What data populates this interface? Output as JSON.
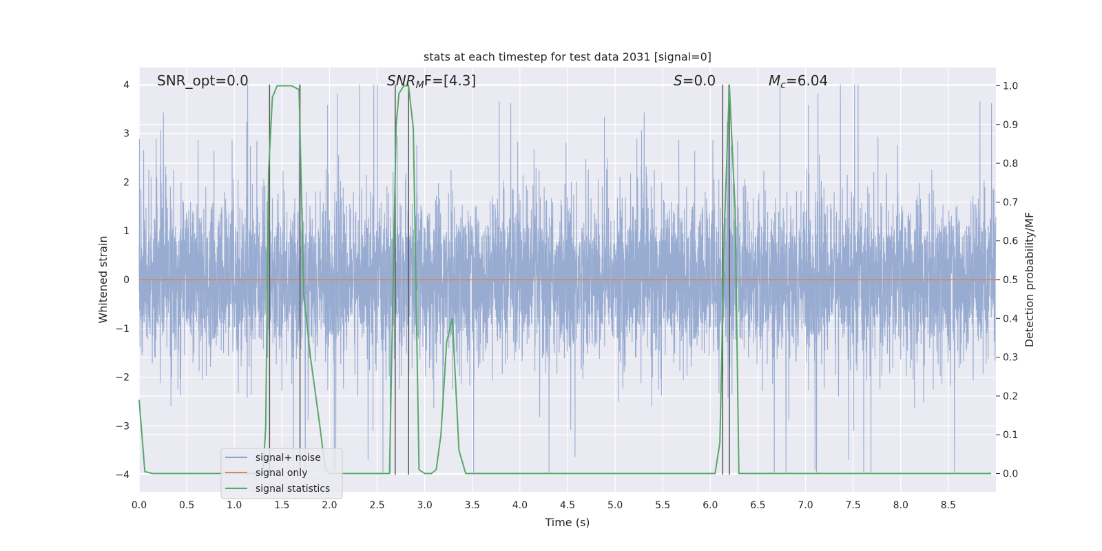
{
  "chart_data": {
    "type": "line",
    "title": "stats at each timestep for test data 2031 [signal=0]",
    "xlabel": "Time (s)",
    "ylabel": "Whitened strain",
    "y2label": "Detection probability/MF",
    "xlim": [
      0,
      9.0
    ],
    "ylim": [
      -4.35,
      4.35
    ],
    "y2lim": [
      -0.047,
      1.047
    ],
    "x_ticks": [
      0.0,
      0.5,
      1.0,
      1.5,
      2.0,
      2.5,
      3.0,
      3.5,
      4.0,
      4.5,
      5.0,
      5.5,
      6.0,
      6.5,
      7.0,
      7.5,
      8.0,
      8.5
    ],
    "x_tick_labels": [
      "0.0",
      "0.5",
      "1.0",
      "1.5",
      "2.0",
      "2.5",
      "3.0",
      "3.5",
      "4.0",
      "4.5",
      "5.0",
      "5.5",
      "6.0",
      "6.5",
      "7.0",
      "7.5",
      "8.0",
      "8.5"
    ],
    "y_ticks": [
      4,
      3,
      2,
      1,
      0,
      -1,
      -2,
      -3,
      -4
    ],
    "y_tick_labels": [
      "4",
      "3",
      "2",
      "1",
      "0",
      "−1",
      "−2",
      "−3",
      "−4"
    ],
    "y2_ticks": [
      1.0,
      0.9,
      0.8,
      0.7,
      0.6,
      0.5,
      0.4,
      0.3,
      0.2,
      0.1,
      0.0
    ],
    "y2_tick_labels": [
      "1.0",
      "0.9",
      "0.8",
      "0.7",
      "0.6",
      "0.5",
      "0.4",
      "0.3",
      "0.2",
      "0.1",
      "0.0"
    ],
    "annotations": {
      "snr_opt": "SNR_opt=0.0",
      "snr_mf_main": "SNR",
      "snr_mf_sub": "M",
      "snr_mf_rest": "F=[4.3]",
      "s_main": "S",
      "s_rest": "=0.0",
      "mc_main": "M",
      "mc_sub": "c",
      "mc_rest": "=6.04"
    },
    "legend": {
      "position": "lower-left",
      "entries": [
        {
          "label": "signal+ noise",
          "color": "#8fa4cd"
        },
        {
          "label": "signal only",
          "color": "#dd8452"
        },
        {
          "label": "signal statistics",
          "color": "#55a868"
        }
      ]
    },
    "grid": true,
    "noise": {
      "name": "signal+ noise",
      "color": "#8fa4cd",
      "x_range": [
        0,
        9.0
      ],
      "band_std": 0.8,
      "peak_max": 4.0,
      "peak_min": -3.95
    },
    "signal_only": {
      "name": "signal only",
      "color": "#dd8452",
      "y": 0
    },
    "statistics": {
      "name": "signal statistics",
      "color": "#55a868",
      "x": [
        0.0,
        0.06,
        0.14,
        0.5,
        1.0,
        1.3,
        1.33,
        1.36,
        1.4,
        1.45,
        1.6,
        1.68,
        1.73,
        1.8,
        1.9,
        1.93,
        1.96,
        2.0,
        2.5,
        2.63,
        2.7,
        2.73,
        2.78,
        2.83,
        2.88,
        2.94,
        3.0,
        3.07,
        3.12,
        3.17,
        3.23,
        3.29,
        3.36,
        3.43,
        3.5,
        4.0,
        5.0,
        6.0,
        6.05,
        6.1,
        6.15,
        6.2,
        6.26,
        6.3,
        6.35,
        7.0,
        8.0,
        8.95
      ],
      "y": [
        0.19,
        0.005,
        0.0,
        0.0,
        0.0,
        0.0,
        0.12,
        0.78,
        0.97,
        1.0,
        1.0,
        0.99,
        0.46,
        0.3,
        0.12,
        0.06,
        0.01,
        0.0,
        0.0,
        0.0,
        0.9,
        0.98,
        1.0,
        1.0,
        0.89,
        0.01,
        0.0,
        0.0,
        0.01,
        0.1,
        0.34,
        0.4,
        0.06,
        0.0,
        0.0,
        0.0,
        0.0,
        0.0,
        0.0,
        0.08,
        0.65,
        1.0,
        0.68,
        0.0,
        0.0,
        0.0,
        0.0,
        0.0
      ]
    },
    "vertical_lines": {
      "color": "#555555",
      "x": [
        1.37,
        1.69,
        2.69,
        2.83,
        6.13,
        6.2
      ],
      "y_range": [
        -4,
        4
      ]
    }
  }
}
